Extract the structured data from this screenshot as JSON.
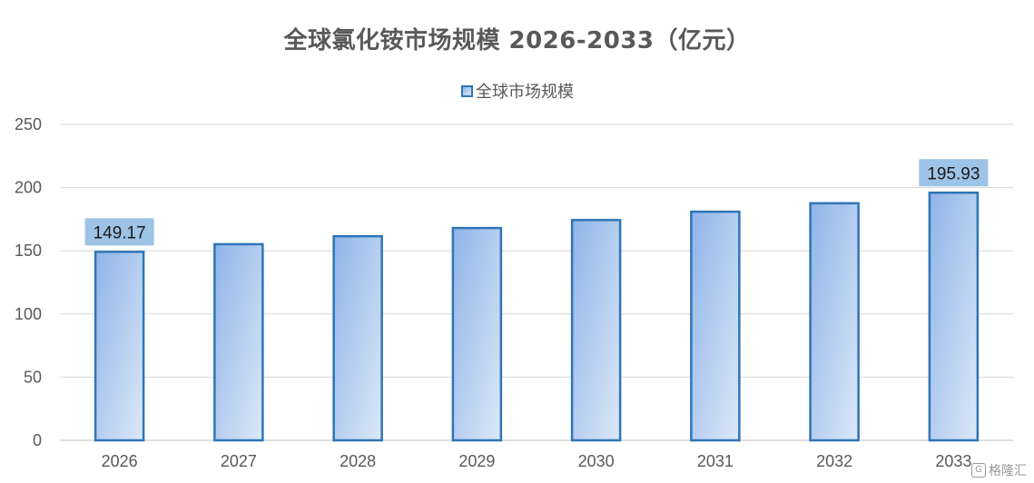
{
  "chart_data": {
    "type": "bar",
    "title": "全球氯化铵市场规模 2026-2033（亿元）",
    "categories": [
      "2026",
      "2027",
      "2028",
      "2029",
      "2030",
      "2031",
      "2032",
      "2033"
    ],
    "series": [
      {
        "name": "全球市场规模",
        "values": [
          149.17,
          155.2,
          161.5,
          168.0,
          174.3,
          180.9,
          187.6,
          195.93
        ],
        "data_labels": [
          "149.17",
          null,
          null,
          null,
          null,
          null,
          null,
          "195.93"
        ]
      }
    ],
    "ylim": [
      0,
      250
    ],
    "yticks": [
      "0",
      "50",
      "100",
      "150",
      "200",
      "250"
    ],
    "grid": true,
    "legend_position": "top-center",
    "colors": {
      "bar_border": "#2e75b6",
      "bar_fill_start": "#8fb4e8",
      "bar_fill_end": "#dce8f8",
      "label_box": "#9dc3e6",
      "grid": "#d9d9d9",
      "axis": "#bfbfbf",
      "text": "#595959"
    }
  },
  "watermark": {
    "text": "格隆汇",
    "icon": "g-logo-icon"
  }
}
